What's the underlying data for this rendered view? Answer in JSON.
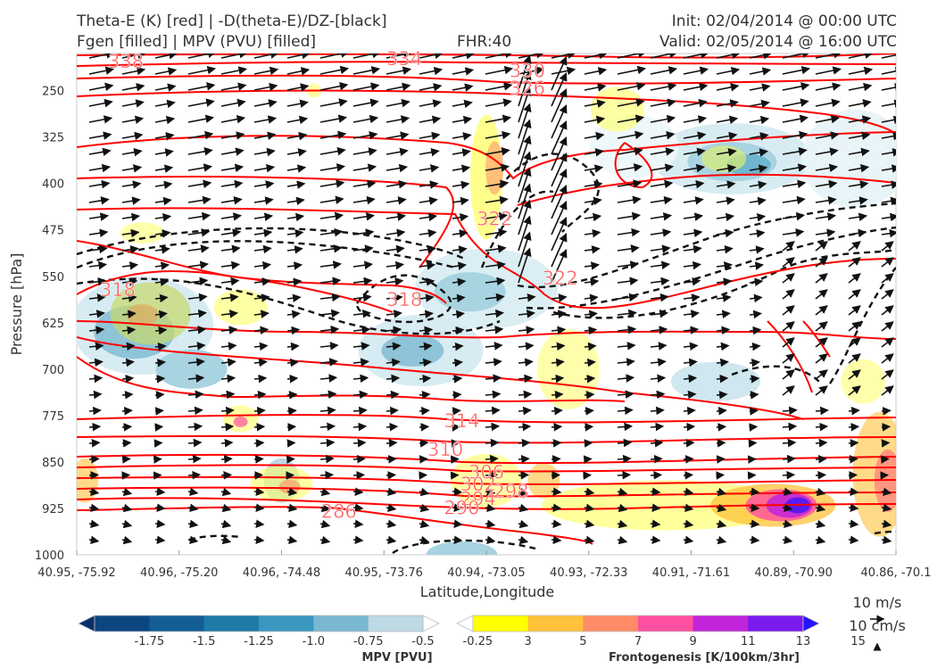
{
  "header": {
    "title_line1": "Theta-E (K) [red] | -D(theta-E)/DZ-[black]",
    "title_line2": "Fgen [filled] | MPV (PVU) [filled]",
    "fhr": "FHR:40",
    "init": "Init: 02/04/2014 @ 00:00 UTC",
    "valid": "Valid: 02/05/2014 @ 16:00 UTC"
  },
  "chart_data": {
    "type": "cross-section",
    "xlabel": "Latitude,Longitude",
    "ylabel": "Pressure [hPa]",
    "x_ticks": [
      "40.95, -75.92",
      "40.96, -75.20",
      "40.96, -74.48",
      "40.95, -73.76",
      "40.94, -73.05",
      "40.93, -72.33",
      "40.91, -71.61",
      "40.89, -70.90",
      "40.86, -70.1"
    ],
    "y_ticks": [
      250,
      325,
      400,
      475,
      550,
      625,
      700,
      775,
      850,
      925,
      1000
    ],
    "ylim": [
      1000,
      190
    ],
    "theta_e_contour_labels": [
      {
        "value": "338",
        "x_frac": 0.06,
        "p": 203
      },
      {
        "value": "334",
        "x_frac": 0.4,
        "p": 199
      },
      {
        "value": "330",
        "x_frac": 0.55,
        "p": 218
      },
      {
        "value": "326",
        "x_frac": 0.55,
        "p": 246
      },
      {
        "value": "322",
        "x_frac": 0.51,
        "p": 457
      },
      {
        "value": "322",
        "x_frac": 0.59,
        "p": 553
      },
      {
        "value": "318",
        "x_frac": 0.05,
        "p": 572
      },
      {
        "value": "318",
        "x_frac": 0.4,
        "p": 588
      },
      {
        "value": "314",
        "x_frac": 0.47,
        "p": 784
      },
      {
        "value": "310",
        "x_frac": 0.45,
        "p": 830
      },
      {
        "value": "306",
        "x_frac": 0.5,
        "p": 867
      },
      {
        "value": "302",
        "x_frac": 0.49,
        "p": 886
      },
      {
        "value": "298",
        "x_frac": 0.53,
        "p": 898
      },
      {
        "value": "294",
        "x_frac": 0.49,
        "p": 910
      },
      {
        "value": "290",
        "x_frac": 0.47,
        "p": 924
      },
      {
        "value": "286",
        "x_frac": 0.32,
        "p": 930
      }
    ],
    "mpv_colorbar": {
      "label": "MPV [PVU]",
      "ticks": [
        "-1.75",
        "-1.5",
        "-1.25",
        "-1.0",
        "-0.75",
        "-0.5",
        "-0.25"
      ],
      "colors": [
        "#08306b",
        "#0b4680",
        "#125d95",
        "#1e7aa8",
        "#3a97bf",
        "#79b7d3",
        "#bcd9e4",
        "#ffffff"
      ]
    },
    "fgen_colorbar": {
      "label": "Frontogenesis [K/100km/3hr]",
      "ticks": [
        "3",
        "5",
        "7",
        "9",
        "11",
        "13",
        "15"
      ],
      "colors": [
        "#ffffff",
        "#ffff00",
        "#ffc23a",
        "#ff8c66",
        "#ff4fa0",
        "#c224d9",
        "#7a1aef",
        "#2612ff"
      ]
    },
    "vector_key": {
      "horizontal": "10 m/s",
      "vertical": "10 cm/s"
    }
  }
}
